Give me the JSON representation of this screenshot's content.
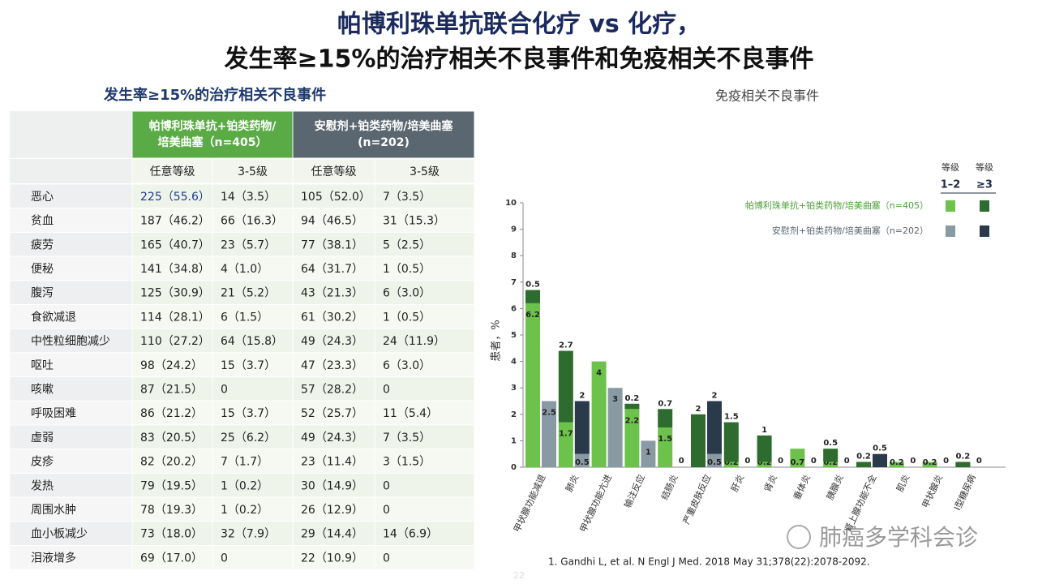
{
  "title_lines": [
    "帕博利珠单抗联合化疗 vs 化疗，",
    "发生率≥15%的治疗相关不良事件和免疫相关不良事件"
  ],
  "table": {
    "title": "发生率≥15%的治疗相关不良事件",
    "groups": [
      [
        "帕博利珠单抗+铂类药物/",
        "培美曲塞（n=405）"
      ],
      [
        "安慰剂+铂类药物/培美曲塞",
        "(n=202)"
      ]
    ],
    "subheaders": [
      "任意等级",
      "3-5级",
      "任意等级",
      "3-5级"
    ],
    "rows": [
      [
        "恶心",
        "225（55.6）",
        "14（3.5）",
        "105（52.0）",
        "7（3.5）"
      ],
      [
        "贫血",
        "187（46.2）",
        "66（16.3）",
        "94（46.5）",
        "31（15.3）"
      ],
      [
        "疲劳",
        "165（40.7）",
        "23（5.7）",
        "77（38.1）",
        "5（2.5）"
      ],
      [
        "便秘",
        "141（34.8）",
        "4（1.0）",
        "64（31.7）",
        "1（0.5）"
      ],
      [
        "腹泻",
        "125（30.9）",
        "21（5.2）",
        "43（21.3）",
        "6（3.0）"
      ],
      [
        "食欲减退",
        "114（28.1）",
        "6（1.5）",
        "61（30.2）",
        "1（0.5）"
      ],
      [
        "中性粒细胞减少",
        "110（27.2）",
        "64（15.8）",
        "49（24.3）",
        "24（11.9）"
      ],
      [
        "呕吐",
        "98（24.2）",
        "15（3.7）",
        "47（23.3）",
        "6（3.0）"
      ],
      [
        "咳嗽",
        "87（21.5）",
        "0",
        "57（28.2）",
        "0"
      ],
      [
        "呼吸困难",
        "86（21.2）",
        "15（3.7）",
        "52（25.7）",
        "11（5.4）"
      ],
      [
        "虚弱",
        "83（20.5）",
        "25（6.2）",
        "49（24.3）",
        "7（3.5）"
      ],
      [
        "皮疹",
        "82（20.2）",
        "7（1.7）",
        "23（11.4）",
        "3（1.5）"
      ],
      [
        "发热",
        "79（19.5）",
        "1（0.2）",
        "30（14.9）",
        "0"
      ],
      [
        "周围水肿",
        "78（19.3）",
        "1（0.2）",
        "26（12.9）",
        "0"
      ],
      [
        "血小板减少",
        "73（18.0）",
        "32（7.9）",
        "29（14.4）",
        "14（6.9）"
      ],
      [
        "泪液增多",
        "69（17.0）",
        "0",
        "22（10.9）",
        "0"
      ]
    ]
  },
  "chart_data": {
    "type": "stacked_bar",
    "title": "免疫相关不良事件",
    "ylabel": "患者，%",
    "categories": [
      "甲状腺功能减退",
      "肺炎",
      "甲状腺功能亢进",
      "输注反应",
      "结肠炎",
      "严重皮肤反应",
      "肝炎",
      "肾炎",
      "垂体炎",
      "胰腺炎",
      "肾上腺功能不全",
      "肌炎",
      "甲状腺炎",
      "I型糖尿病"
    ],
    "grade_header": "等级",
    "grades": [
      "1–2",
      "≥3"
    ],
    "arms": [
      {
        "name": "帕博利珠单抗+铂类药物/培美曲塞（n=405）",
        "text_color": "#4ea03a",
        "series": [
          {
            "color": "#6cc24a",
            "values": [
              6.2,
              1.7,
              4,
              2.2,
              1.5,
              0,
              0.2,
              0.2,
              0.7,
              0.2,
              0,
              0.2,
              0.2,
              0
            ]
          },
          {
            "color": "#2e6b2e",
            "values": [
              0.5,
              2.7,
              0,
              0.2,
              0.7,
              2,
              1.5,
              1,
              0,
              0.5,
              0.2,
              0,
              0,
              0.2
            ]
          }
        ]
      },
      {
        "name": "安慰剂+铂类药物/培美曲塞（n=202）",
        "text_color": "#5b6770",
        "series": [
          {
            "color": "#8a9aa5",
            "values": [
              2.5,
              0.5,
              3,
              1,
              0,
              0.5,
              0,
              0,
              0,
              0,
              0,
              0,
              0,
              0
            ]
          },
          {
            "color": "#2b3a4a",
            "values": [
              0,
              2,
              0,
              0,
              0,
              2,
              0,
              0,
              0,
              0,
              0.5,
              0,
              0,
              0
            ]
          }
        ]
      }
    ],
    "ylim": [
      0,
      10
    ],
    "yticks": [
      0,
      1,
      2,
      3,
      4,
      5,
      6,
      7,
      8,
      9,
      10
    ]
  },
  "footnote": "1.    Gandhi L, et al. N Engl J Med. 2018 May 31;378(22):2078-2092.",
  "page_number": "22",
  "watermark": "肺癌多学科会诊"
}
